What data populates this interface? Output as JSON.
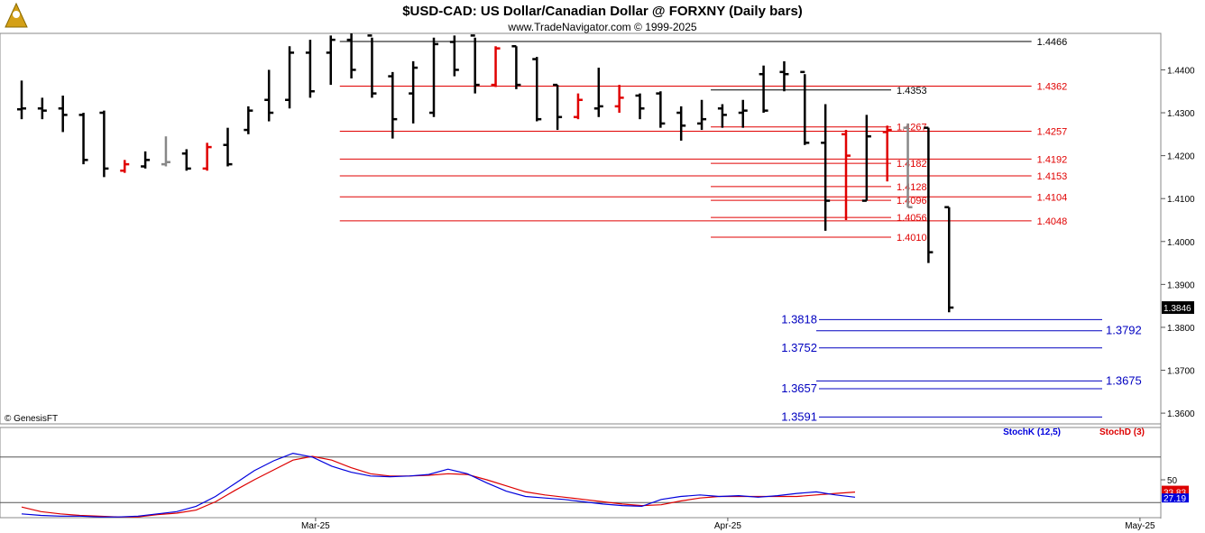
{
  "header": {
    "title": "$USD-CAD:  US Dollar/Canadian Dollar @ FORXNY  (Daily bars)",
    "subtitle": "www.TradeNavigator.com © 1999-2025"
  },
  "copyright": "© GenesisFT",
  "colors": {
    "up_bar": "#e00000",
    "down_bar": "#000000",
    "neutral_bar": "#888888",
    "red_level": "#e00000",
    "black_level": "#000000",
    "blue_level": "#0000c0",
    "stoch_k": "#0000dd",
    "stoch_d": "#dd0000"
  },
  "chart_data": [
    {
      "type": "ohlc",
      "title": "$USD-CAD:  US Dollar/Canadian Dollar @ FORXNY  (Daily bars)",
      "y_ticks": [
        "1.4400",
        "1.4300",
        "1.4200",
        "1.4100",
        "1.4000",
        "1.3900",
        "1.3800",
        "1.3700",
        "1.3600"
      ],
      "ylim": [
        1.3575,
        1.4485
      ],
      "x_ticks": [
        {
          "label": "Mar-25",
          "index": 14
        },
        {
          "label": "Apr-25",
          "index": 34
        },
        {
          "label": "May-25",
          "index": 54
        }
      ],
      "last_price_label": "1.3846",
      "bars": [
        {
          "o": 1.4308,
          "h": 1.4375,
          "l": 1.4285,
          "c": 1.431,
          "col": "k"
        },
        {
          "o": 1.431,
          "h": 1.4335,
          "l": 1.4285,
          "c": 1.4305,
          "col": "k"
        },
        {
          "o": 1.431,
          "h": 1.434,
          "l": 1.4255,
          "c": 1.4295,
          "col": "k"
        },
        {
          "o": 1.4295,
          "h": 1.43,
          "l": 1.418,
          "c": 1.419,
          "col": "k"
        },
        {
          "o": 1.43,
          "h": 1.4305,
          "l": 1.415,
          "c": 1.417,
          "col": "k"
        },
        {
          "o": 1.4165,
          "h": 1.419,
          "l": 1.416,
          "c": 1.418,
          "col": "r"
        },
        {
          "o": 1.4175,
          "h": 1.421,
          "l": 1.417,
          "c": 1.419,
          "col": "k"
        },
        {
          "o": 1.418,
          "h": 1.4245,
          "l": 1.4175,
          "c": 1.4185,
          "col": "g"
        },
        {
          "o": 1.4205,
          "h": 1.4215,
          "l": 1.4165,
          "c": 1.417,
          "col": "k"
        },
        {
          "o": 1.417,
          "h": 1.423,
          "l": 1.4165,
          "c": 1.422,
          "col": "r"
        },
        {
          "o": 1.4225,
          "h": 1.4265,
          "l": 1.4175,
          "c": 1.418,
          "col": "k"
        },
        {
          "o": 1.426,
          "h": 1.4315,
          "l": 1.425,
          "c": 1.4305,
          "col": "k"
        },
        {
          "o": 1.433,
          "h": 1.44,
          "l": 1.428,
          "c": 1.43,
          "col": "k"
        },
        {
          "o": 1.433,
          "h": 1.4455,
          "l": 1.431,
          "c": 1.444,
          "col": "k"
        },
        {
          "o": 1.444,
          "h": 1.447,
          "l": 1.4335,
          "c": 1.435,
          "col": "k"
        },
        {
          "o": 1.444,
          "h": 1.448,
          "l": 1.4365,
          "c": 1.447,
          "col": "k"
        },
        {
          "o": 1.447,
          "h": 1.4485,
          "l": 1.438,
          "c": 1.44,
          "col": "k"
        },
        {
          "o": 1.448,
          "h": 1.4475,
          "l": 1.4335,
          "c": 1.4345,
          "col": "k"
        },
        {
          "o": 1.4385,
          "h": 1.4395,
          "l": 1.424,
          "c": 1.4285,
          "col": "k"
        },
        {
          "o": 1.4345,
          "h": 1.442,
          "l": 1.4275,
          "c": 1.4405,
          "col": "k"
        },
        {
          "o": 1.43,
          "h": 1.4475,
          "l": 1.429,
          "c": 1.446,
          "col": "k"
        },
        {
          "o": 1.4465,
          "h": 1.448,
          "l": 1.4385,
          "c": 1.44,
          "col": "k"
        },
        {
          "o": 1.448,
          "h": 1.4475,
          "l": 1.4345,
          "c": 1.4365,
          "col": "k"
        },
        {
          "o": 1.4365,
          "h": 1.4455,
          "l": 1.436,
          "c": 1.445,
          "col": "r"
        },
        {
          "o": 1.4455,
          "h": 1.4455,
          "l": 1.4355,
          "c": 1.4365,
          "col": "k"
        },
        {
          "o": 1.4425,
          "h": 1.443,
          "l": 1.428,
          "c": 1.4285,
          "col": "k"
        },
        {
          "o": 1.4365,
          "h": 1.4365,
          "l": 1.426,
          "c": 1.429,
          "col": "k"
        },
        {
          "o": 1.429,
          "h": 1.4345,
          "l": 1.4285,
          "c": 1.433,
          "col": "r"
        },
        {
          "o": 1.431,
          "h": 1.4405,
          "l": 1.429,
          "c": 1.4315,
          "col": "k"
        },
        {
          "o": 1.4315,
          "h": 1.4365,
          "l": 1.43,
          "c": 1.4335,
          "col": "r"
        },
        {
          "o": 1.434,
          "h": 1.4345,
          "l": 1.4285,
          "c": 1.431,
          "col": "k"
        },
        {
          "o": 1.4345,
          "h": 1.435,
          "l": 1.4265,
          "c": 1.4275,
          "col": "k"
        },
        {
          "o": 1.43,
          "h": 1.4315,
          "l": 1.4235,
          "c": 1.427,
          "col": "k"
        },
        {
          "o": 1.4275,
          "h": 1.433,
          "l": 1.426,
          "c": 1.4285,
          "col": "k"
        },
        {
          "o": 1.431,
          "h": 1.432,
          "l": 1.4265,
          "c": 1.4295,
          "col": "k"
        },
        {
          "o": 1.43,
          "h": 1.433,
          "l": 1.4265,
          "c": 1.4305,
          "col": "k"
        },
        {
          "o": 1.439,
          "h": 1.441,
          "l": 1.43,
          "c": 1.4305,
          "col": "k"
        },
        {
          "o": 1.4395,
          "h": 1.442,
          "l": 1.435,
          "c": 1.439,
          "col": "k"
        },
        {
          "o": 1.4395,
          "h": 1.439,
          "l": 1.4225,
          "c": 1.423,
          "col": "k"
        },
        {
          "o": 1.423,
          "h": 1.432,
          "l": 1.4025,
          "c": 1.4095,
          "col": "k"
        },
        {
          "o": 1.425,
          "h": 1.426,
          "l": 1.405,
          "c": 1.42,
          "col": "r"
        },
        {
          "o": 1.4095,
          "h": 1.4295,
          "l": 1.4095,
          "c": 1.4245,
          "col": "k"
        },
        {
          "o": 1.4255,
          "h": 1.427,
          "l": 1.414,
          "c": 1.426,
          "col": "r"
        },
        {
          "o": 1.4265,
          "h": 1.4275,
          "l": 1.408,
          "c": 1.408,
          "col": "g"
        },
        {
          "o": 1.4265,
          "h": 1.4265,
          "l": 1.395,
          "c": 1.3975,
          "col": "k"
        },
        {
          "o": 1.408,
          "h": 1.408,
          "l": 1.3835,
          "c": 1.3846,
          "col": "k"
        }
      ],
      "levels": [
        {
          "value": 1.4466,
          "label": "1.4466",
          "color": "black",
          "from": 15,
          "to": 49,
          "label_side": "right"
        },
        {
          "value": 1.4362,
          "label": "1.4362",
          "color": "red",
          "from": 15,
          "to": 49,
          "label_side": "right"
        },
        {
          "value": 1.4353,
          "label": "1.4353",
          "color": "black",
          "from": 33,
          "to": 42,
          "label_side": "right"
        },
        {
          "value": 1.4267,
          "label": "1.4267",
          "color": "red",
          "from": 33,
          "to": 42,
          "label_side": "right"
        },
        {
          "value": 1.4257,
          "label": "1.4257",
          "color": "red",
          "from": 15,
          "to": 49,
          "label_side": "right"
        },
        {
          "value": 1.4192,
          "label": "1.4192",
          "color": "red",
          "from": 15,
          "to": 49,
          "label_side": "right"
        },
        {
          "value": 1.4182,
          "label": "1.4182",
          "color": "red",
          "from": 33,
          "to": 42,
          "label_side": "right"
        },
        {
          "value": 1.4153,
          "label": "1.4153",
          "color": "red",
          "from": 15,
          "to": 49,
          "label_side": "right"
        },
        {
          "value": 1.4128,
          "label": "1.4128",
          "color": "red",
          "from": 33,
          "to": 42,
          "label_side": "right"
        },
        {
          "value": 1.4104,
          "label": "1.4104",
          "color": "red",
          "from": 15,
          "to": 49,
          "label_side": "right"
        },
        {
          "value": 1.4096,
          "label": "1.4096",
          "color": "red",
          "from": 33,
          "to": 42,
          "label_side": "right"
        },
        {
          "value": 1.4056,
          "label": "1.4056",
          "color": "red",
          "from": 33,
          "to": 42,
          "label_side": "right"
        },
        {
          "value": 1.4048,
          "label": "1.4048",
          "color": "red",
          "from": 15,
          "to": 49,
          "label_side": "right"
        },
        {
          "value": 1.401,
          "label": "1.4010",
          "color": "red",
          "from": 33,
          "to": 42,
          "label_side": "right"
        },
        {
          "value": 1.3818,
          "label": "1.3818",
          "color": "blue",
          "from": 38,
          "to": 53,
          "label_side": "left"
        },
        {
          "value": 1.3792,
          "label": "1.3792",
          "color": "blue",
          "from": 38,
          "to": 53,
          "label_side": "right"
        },
        {
          "value": 1.3752,
          "label": "1.3752",
          "color": "blue",
          "from": 38,
          "to": 53,
          "label_side": "left"
        },
        {
          "value": 1.3675,
          "label": "1.3675",
          "color": "blue",
          "from": 38,
          "to": 53,
          "label_side": "right"
        },
        {
          "value": 1.3657,
          "label": "1.3657",
          "color": "blue",
          "from": 38,
          "to": 53,
          "label_side": "left"
        },
        {
          "value": 1.3591,
          "label": "1.3591",
          "color": "blue",
          "from": 38,
          "to": 53,
          "label_side": "left"
        }
      ]
    },
    {
      "type": "line",
      "legend": [
        {
          "name": "StochK (12,5)",
          "color": "blue"
        },
        {
          "name": "StochD (3)",
          "color": "red"
        }
      ],
      "y_tick": "50",
      "ylim": [
        0,
        100
      ],
      "k_label": "27.19",
      "d_label": "33.83",
      "series": [
        {
          "name": "StochK (12,5)",
          "values": [
            5,
            3,
            2,
            2,
            1,
            1,
            2,
            5,
            8,
            15,
            28,
            45,
            62,
            75,
            85,
            80,
            68,
            60,
            55,
            54,
            55,
            57,
            64,
            58,
            46,
            35,
            28,
            26,
            24,
            21,
            18,
            16,
            15,
            24,
            28,
            30,
            28,
            29,
            27,
            29,
            32,
            34,
            30,
            27
          ]
        },
        {
          "name": "StochD (3)",
          "values": [
            14,
            8,
            5,
            3,
            2,
            1,
            1,
            4,
            6,
            10,
            21,
            36,
            50,
            63,
            76,
            81,
            76,
            66,
            58,
            55,
            55,
            56,
            58,
            57,
            50,
            42,
            34,
            30,
            27,
            24,
            21,
            18,
            16,
            17,
            22,
            26,
            28,
            28,
            28,
            28,
            28,
            30,
            32,
            33.83
          ]
        }
      ]
    }
  ]
}
